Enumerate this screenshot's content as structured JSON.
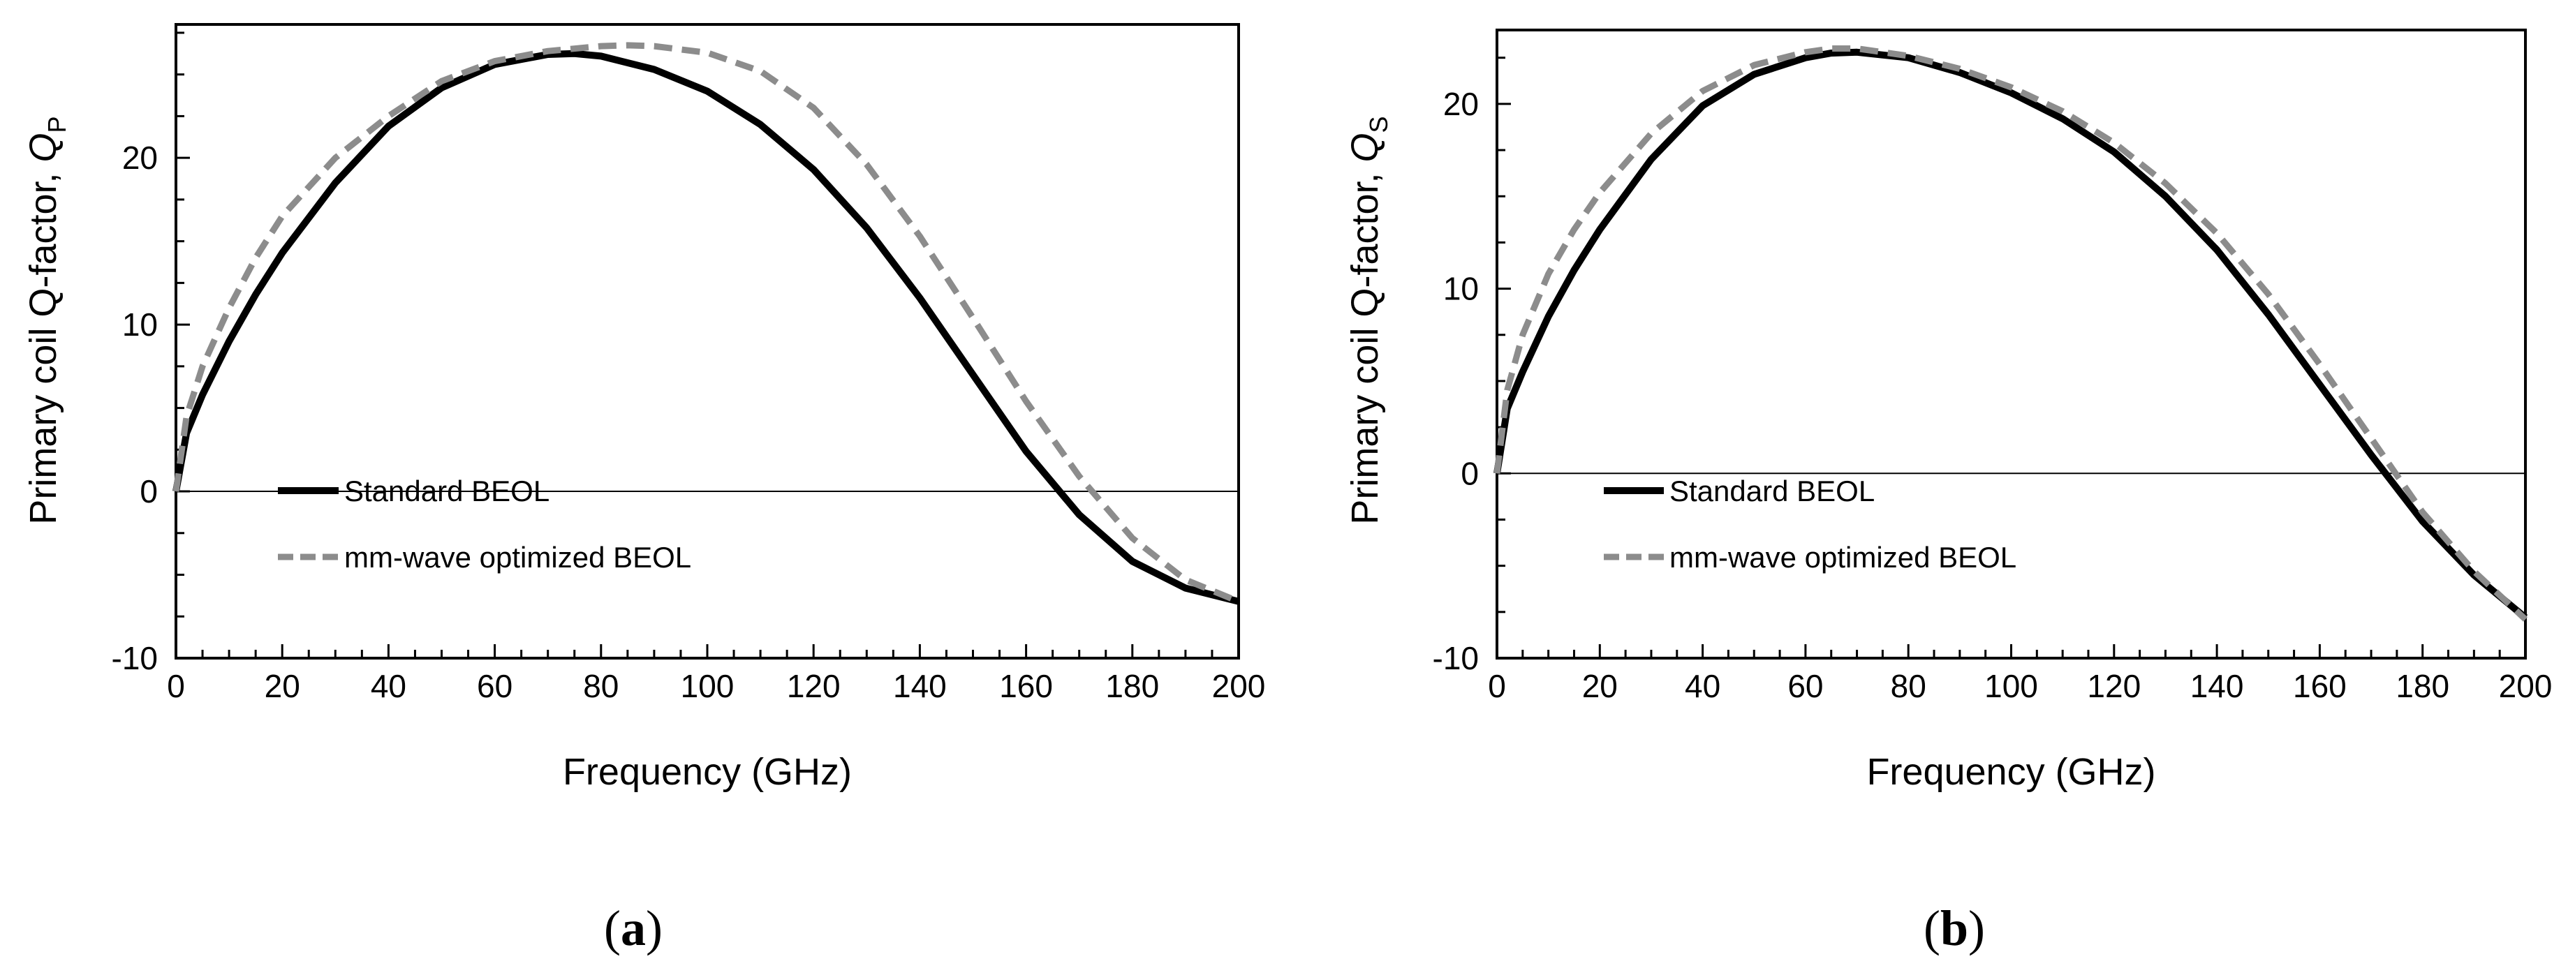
{
  "chart_data": [
    {
      "type": "line",
      "panel_label": "a",
      "title": "",
      "xlabel": "Frequency (GHz)",
      "ylabel_main": "Primary coil Q-factor, ",
      "ylabel_symbol": "Q",
      "ylabel_sub": "P",
      "xlim": [
        0,
        200
      ],
      "ylim": [
        -10,
        28
      ],
      "x_ticks": [
        0,
        20,
        40,
        60,
        80,
        100,
        120,
        140,
        160,
        180,
        200
      ],
      "y_ticks": [
        -10,
        0,
        10,
        20
      ],
      "legend_position": "left",
      "series": [
        {
          "name": "Standard BEOL",
          "style": "solid",
          "color": "#000000",
          "x": [
            0,
            2,
            5,
            10,
            15,
            20,
            30,
            40,
            50,
            60,
            70,
            75,
            80,
            90,
            100,
            110,
            120,
            130,
            140,
            150,
            160,
            170,
            180,
            190,
            200
          ],
          "y": [
            0,
            3.5,
            5.8,
            9,
            11.8,
            14.3,
            18.5,
            21.9,
            24.2,
            25.6,
            26.2,
            26.25,
            26.1,
            25.3,
            24.0,
            22.0,
            19.3,
            15.8,
            11.6,
            7.0,
            2.4,
            -1.4,
            -4.2,
            -5.8,
            -6.6
          ]
        },
        {
          "name": "mm-wave optimized BEOL",
          "style": "dashed",
          "color": "#8c8c8c",
          "x": [
            0,
            2,
            5,
            10,
            15,
            20,
            30,
            40,
            50,
            60,
            70,
            80,
            85,
            90,
            100,
            110,
            120,
            130,
            140,
            150,
            160,
            170,
            180,
            190,
            200
          ],
          "y": [
            0,
            4.5,
            7.5,
            11.0,
            14.0,
            16.5,
            20.0,
            22.5,
            24.6,
            25.8,
            26.4,
            26.7,
            26.75,
            26.7,
            26.3,
            25.2,
            23.0,
            19.6,
            15.3,
            10.4,
            5.4,
            0.9,
            -2.8,
            -5.3,
            -6.6
          ]
        }
      ]
    },
    {
      "type": "line",
      "panel_label": "b",
      "title": "",
      "xlabel": "Frequency (GHz)",
      "ylabel_main": "Primary coil Q-factor, ",
      "ylabel_symbol": "Q",
      "ylabel_sub": "S",
      "xlim": [
        0,
        200
      ],
      "ylim": [
        -10,
        24
      ],
      "x_ticks": [
        0,
        20,
        40,
        60,
        80,
        100,
        120,
        140,
        160,
        180,
        200
      ],
      "y_ticks": [
        -10,
        0,
        10,
        20
      ],
      "legend_position": "left",
      "series": [
        {
          "name": "Standard BEOL",
          "style": "solid",
          "color": "#000000",
          "x": [
            0,
            2,
            5,
            10,
            15,
            20,
            30,
            40,
            50,
            60,
            65,
            70,
            80,
            90,
            100,
            110,
            120,
            130,
            140,
            150,
            160,
            170,
            180,
            190,
            200
          ],
          "y": [
            0,
            3.5,
            5.5,
            8.5,
            11.0,
            13.2,
            17.0,
            19.9,
            21.6,
            22.5,
            22.75,
            22.8,
            22.5,
            21.7,
            20.6,
            19.2,
            17.4,
            15.0,
            12.1,
            8.6,
            4.8,
            1.0,
            -2.6,
            -5.5,
            -7.8
          ]
        },
        {
          "name": "mm-wave optimized BEOL",
          "style": "dashed",
          "color": "#8c8c8c",
          "x": [
            0,
            2,
            5,
            10,
            15,
            20,
            30,
            40,
            50,
            60,
            65,
            70,
            80,
            90,
            100,
            110,
            120,
            130,
            140,
            150,
            160,
            170,
            180,
            190,
            200
          ],
          "y": [
            0,
            4.5,
            7.5,
            10.8,
            13.2,
            15.2,
            18.4,
            20.7,
            22.1,
            22.8,
            23.0,
            23.0,
            22.6,
            21.9,
            20.9,
            19.6,
            17.9,
            15.7,
            13.0,
            9.7,
            5.9,
            1.9,
            -2.1,
            -5.3,
            -7.9
          ]
        }
      ]
    }
  ]
}
